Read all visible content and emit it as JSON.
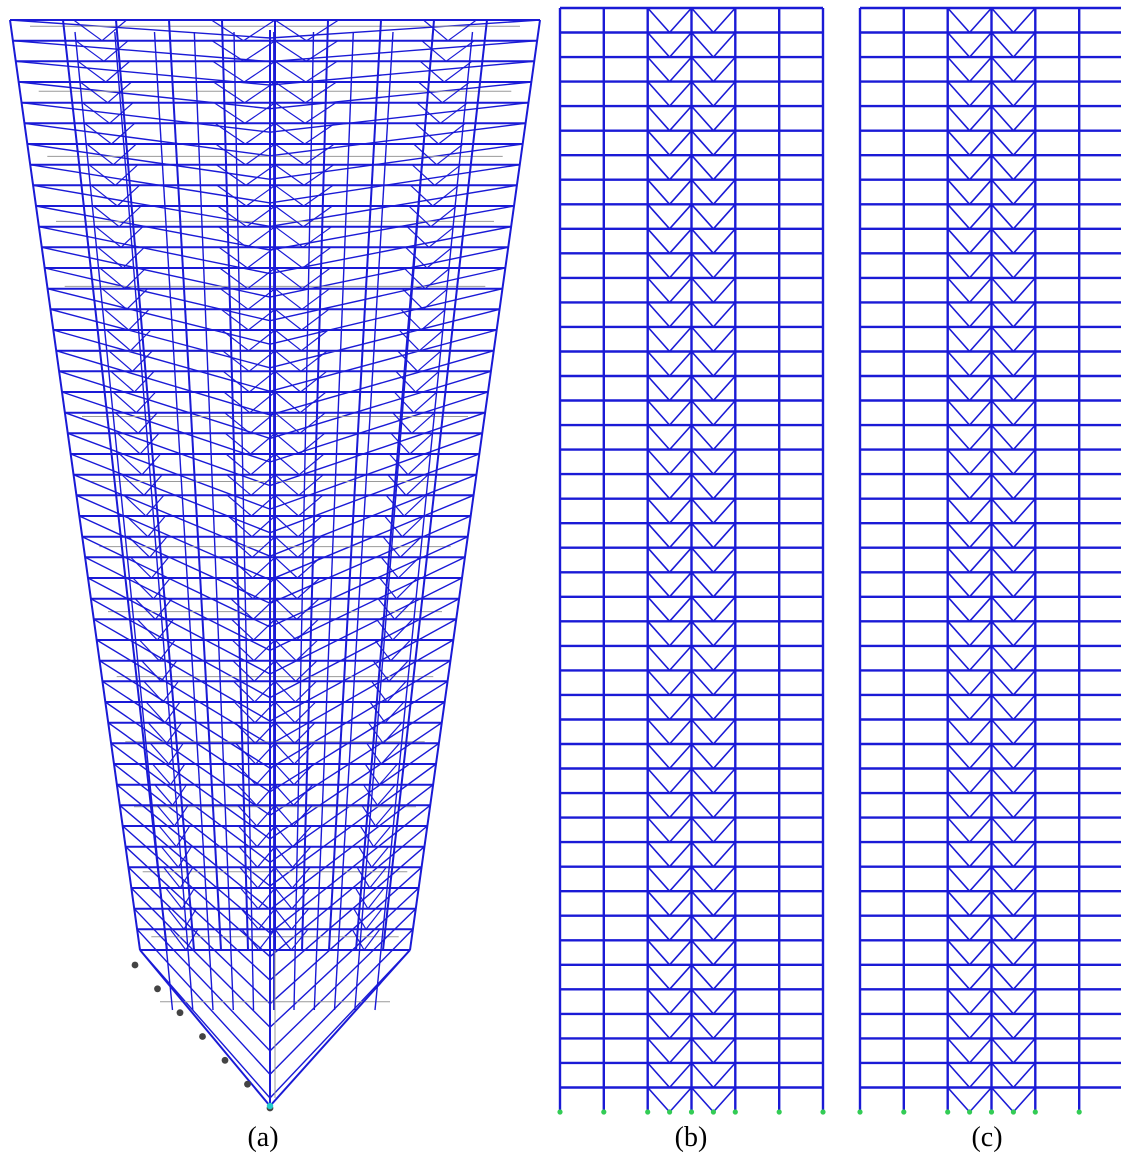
{
  "figure": {
    "panels": [
      {
        "id": "a",
        "caption": "(a)",
        "view": "3d-isometric"
      },
      {
        "id": "b",
        "caption": "(b)",
        "view": "elevation"
      },
      {
        "id": "c",
        "caption": "(c)",
        "view": "elevation"
      }
    ],
    "stories": 45,
    "elevation_bays": 6,
    "braced_bays": [
      2,
      3
    ],
    "colors": {
      "frame": "#1a1ad6",
      "slab_grid": "#9a9a9a",
      "support": "#33cc55",
      "background": "#ffffff"
    }
  }
}
